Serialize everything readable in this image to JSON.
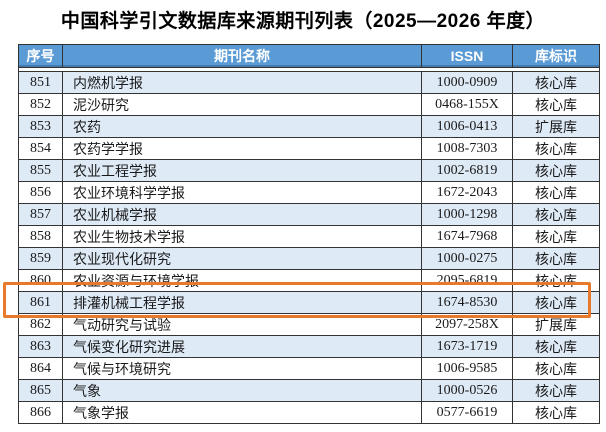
{
  "title": "中国科学引文数据库来源期刊列表（2025—2026 年度）",
  "table": {
    "columns": [
      "序号",
      "期刊名称",
      "ISSN",
      "库标识"
    ],
    "rows": [
      {
        "seq": "851",
        "name": "内燃机学报",
        "issn": "1000-0909",
        "db": "核心库"
      },
      {
        "seq": "852",
        "name": "泥沙研究",
        "issn": "0468-155X",
        "db": "核心库"
      },
      {
        "seq": "853",
        "name": "农药",
        "issn": "1006-0413",
        "db": "扩展库"
      },
      {
        "seq": "854",
        "name": "农药学学报",
        "issn": "1008-7303",
        "db": "核心库"
      },
      {
        "seq": "855",
        "name": "农业工程学报",
        "issn": "1002-6819",
        "db": "核心库"
      },
      {
        "seq": "856",
        "name": "农业环境科学学报",
        "issn": "1672-2043",
        "db": "核心库"
      },
      {
        "seq": "857",
        "name": "农业机械学报",
        "issn": "1000-1298",
        "db": "核心库"
      },
      {
        "seq": "858",
        "name": "农业生物技术学报",
        "issn": "1674-7968",
        "db": "核心库"
      },
      {
        "seq": "859",
        "name": "农业现代化研究",
        "issn": "1000-0275",
        "db": "核心库"
      },
      {
        "seq": "860",
        "name": "农业资源与环境学报",
        "issn": "2095-6819",
        "db": "核心库"
      },
      {
        "seq": "861",
        "name": "排灌机械工程学报",
        "issn": "1674-8530",
        "db": "核心库"
      },
      {
        "seq": "862",
        "name": "气动研究与试验",
        "issn": "2097-258X",
        "db": "扩展库"
      },
      {
        "seq": "863",
        "name": "气候变化研究进展",
        "issn": "1673-1719",
        "db": "核心库"
      },
      {
        "seq": "864",
        "name": "气候与环境研究",
        "issn": "1006-9585",
        "db": "核心库"
      },
      {
        "seq": "865",
        "name": "气象",
        "issn": "1000-0526",
        "db": "核心库"
      },
      {
        "seq": "866",
        "name": "气象学报",
        "issn": "0577-6619",
        "db": "核心库"
      }
    ],
    "highlighted_row_seq": "861"
  },
  "colors": {
    "header_bg": "#5B9BD5",
    "row_alt_bg": "#DEEAF6",
    "border": "#333333",
    "highlight_box": "#E8792A"
  }
}
